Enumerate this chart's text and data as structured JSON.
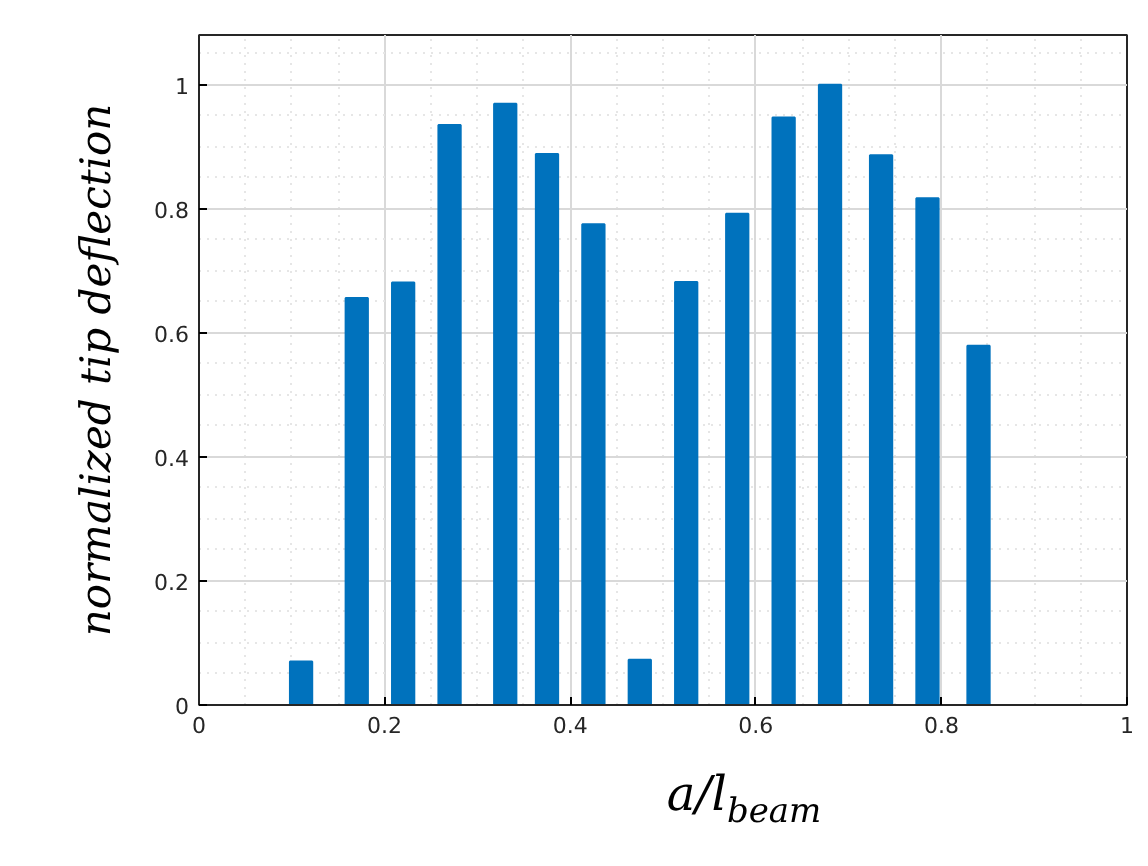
{
  "chart_data": {
    "type": "bar",
    "xlabel": "a/l$_{beam}$",
    "ylabel": "normalized tip deflection",
    "x": [
      0.11,
      0.17,
      0.22,
      0.27,
      0.33,
      0.375,
      0.425,
      0.475,
      0.525,
      0.58,
      0.63,
      0.68,
      0.735,
      0.785,
      0.84
    ],
    "values": [
      0.07,
      0.656,
      0.681,
      0.935,
      0.969,
      0.888,
      0.775,
      0.073,
      0.682,
      0.792,
      0.947,
      1.0,
      0.886,
      0.817,
      0.579
    ],
    "color": "#0072bd",
    "xlim": [
      0,
      1
    ],
    "xticks": [
      0,
      0.2,
      0.4,
      0.6,
      0.8,
      1
    ],
    "ylim": [
      0,
      1.08
    ],
    "yticks": [
      0,
      0.2,
      0.4,
      0.6,
      0.8,
      1
    ],
    "grid": true
  }
}
